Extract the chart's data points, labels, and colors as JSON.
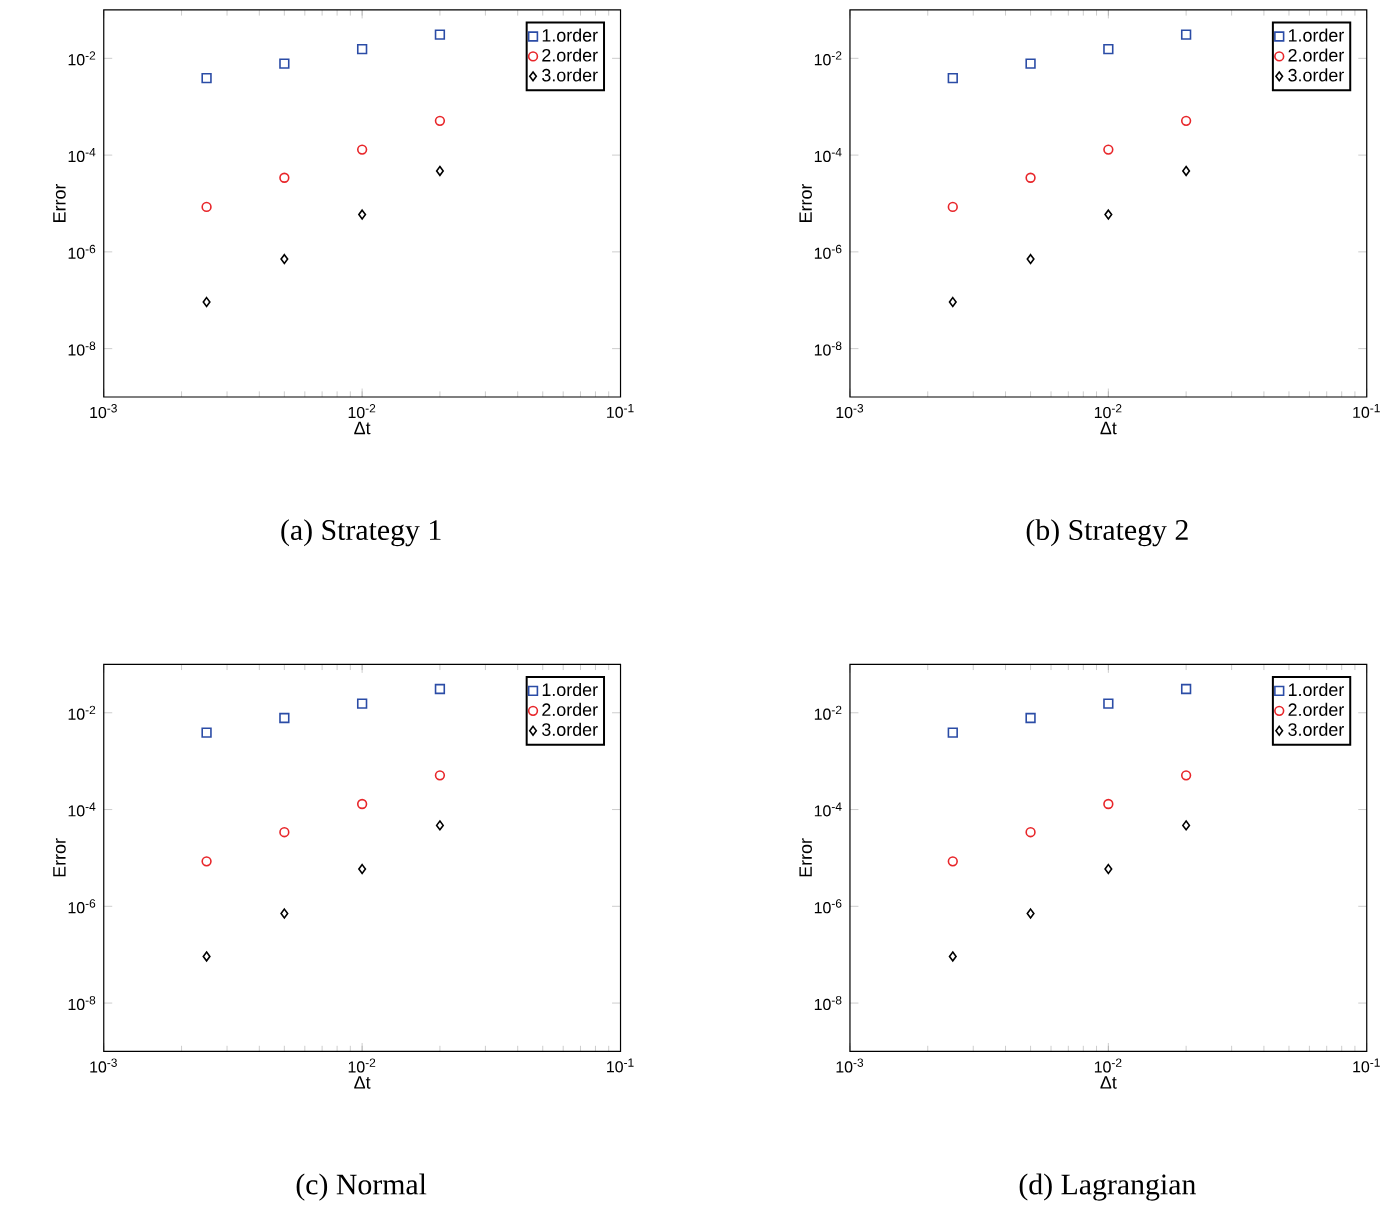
{
  "chart_data": [
    {
      "type": "scatter",
      "title": "(a) Strategy 1",
      "xlabel": "Δt",
      "ylabel": "Error",
      "log": "xy",
      "legend": "top right",
      "x": [
        0.0025,
        0.005,
        0.01,
        0.02
      ],
      "xlim": [
        0.001,
        0.1
      ],
      "ylim": [
        1e-09,
        0.1
      ],
      "xticks": [
        {
          "value": 0.001,
          "label": "10$^{-3}$"
        },
        {
          "value": 0.01,
          "label": "10$^{-2}$"
        },
        {
          "value": 0.1,
          "label": "10$^{-1}$"
        }
      ],
      "yticks": [
        {
          "value": 1e-08,
          "label": "10$^{-8}$"
        },
        {
          "value": 1e-06,
          "label": "10$^{-6}$"
        },
        {
          "value": 0.0001,
          "label": "10$^{-4}$"
        },
        {
          "value": 0.01,
          "label": "10$^{-2}$"
        }
      ],
      "series": [
        {
          "name": "1.order",
          "color": "#2b4ca6",
          "marker": "square",
          "values": [
            0.0039,
            0.0078,
            0.0155,
            0.031
          ]
        },
        {
          "name": "2.order",
          "color": "#e8262a",
          "marker": "circle",
          "values": [
            8.5e-06,
            3.4e-05,
            0.00013,
            0.00051
          ]
        },
        {
          "name": "3.order",
          "color": "#000000",
          "marker": "diamond",
          "values": [
            9.2e-08,
            7.1e-07,
            5.9e-06,
            4.7e-05
          ]
        }
      ]
    },
    {
      "type": "scatter",
      "title": "(b) Strategy 2",
      "xlabel": "Δt",
      "ylabel": "Error",
      "log": "xy",
      "legend": "top right",
      "x": [
        0.0025,
        0.005,
        0.01,
        0.02
      ],
      "xlim": [
        0.001,
        0.1
      ],
      "ylim": [
        1e-09,
        0.1
      ],
      "xticks": [
        {
          "value": 0.001,
          "label": "10$^{-3}$"
        },
        {
          "value": 0.01,
          "label": "10$^{-2}$"
        },
        {
          "value": 0.1,
          "label": "10$^{-1}$"
        }
      ],
      "yticks": [
        {
          "value": 1e-08,
          "label": "10$^{-8}$"
        },
        {
          "value": 1e-06,
          "label": "10$^{-6}$"
        },
        {
          "value": 0.0001,
          "label": "10$^{-4}$"
        },
        {
          "value": 0.01,
          "label": "10$^{-2}$"
        }
      ],
      "series": [
        {
          "name": "1.order",
          "color": "#2b4ca6",
          "marker": "square",
          "values": [
            0.0039,
            0.0078,
            0.0155,
            0.031
          ]
        },
        {
          "name": "2.order",
          "color": "#e8262a",
          "marker": "circle",
          "values": [
            8.5e-06,
            3.4e-05,
            0.00013,
            0.00051
          ]
        },
        {
          "name": "3.order",
          "color": "#000000",
          "marker": "diamond",
          "values": [
            9.2e-08,
            7.1e-07,
            5.9e-06,
            4.7e-05
          ]
        }
      ]
    },
    {
      "type": "scatter",
      "title": "(c) Normal",
      "xlabel": "Δt",
      "ylabel": "Error",
      "log": "xy",
      "legend": "top right",
      "x": [
        0.0025,
        0.005,
        0.01,
        0.02
      ],
      "xlim": [
        0.001,
        0.1
      ],
      "ylim": [
        1e-09,
        0.1
      ],
      "xticks": [
        {
          "value": 0.001,
          "label": "10$^{-3}$"
        },
        {
          "value": 0.01,
          "label": "10$^{-2}$"
        },
        {
          "value": 0.1,
          "label": "10$^{-1}$"
        }
      ],
      "yticks": [
        {
          "value": 1e-08,
          "label": "10$^{-8}$"
        },
        {
          "value": 1e-06,
          "label": "10$^{-6}$"
        },
        {
          "value": 0.0001,
          "label": "10$^{-4}$"
        },
        {
          "value": 0.01,
          "label": "10$^{-2}$"
        }
      ],
      "series": [
        {
          "name": "1.order",
          "color": "#2b4ca6",
          "marker": "square",
          "values": [
            0.0039,
            0.0078,
            0.0155,
            0.031
          ]
        },
        {
          "name": "2.order",
          "color": "#e8262a",
          "marker": "circle",
          "values": [
            8.5e-06,
            3.4e-05,
            0.00013,
            0.00051
          ]
        },
        {
          "name": "3.order",
          "color": "#000000",
          "marker": "diamond",
          "values": [
            9.2e-08,
            7.1e-07,
            5.9e-06,
            4.7e-05
          ]
        }
      ]
    },
    {
      "type": "scatter",
      "title": "(d) Lagrangian",
      "xlabel": "Δt",
      "ylabel": "Error",
      "log": "xy",
      "legend": "top right",
      "x": [
        0.0025,
        0.005,
        0.01,
        0.02
      ],
      "xlim": [
        0.001,
        0.1
      ],
      "ylim": [
        1e-09,
        0.1
      ],
      "xticks": [
        {
          "value": 0.001,
          "label": "10$^{-3}$"
        },
        {
          "value": 0.01,
          "label": "10$^{-2}$"
        },
        {
          "value": 0.1,
          "label": "10$^{-1}$"
        }
      ],
      "yticks": [
        {
          "value": 1e-08,
          "label": "10$^{-8}$"
        },
        {
          "value": 1e-06,
          "label": "10$^{-6}$"
        },
        {
          "value": 0.0001,
          "label": "10$^{-4}$"
        },
        {
          "value": 0.01,
          "label": "10$^{-2}$"
        }
      ],
      "series": [
        {
          "name": "1.order",
          "color": "#2b4ca6",
          "marker": "square",
          "values": [
            0.0039,
            0.0078,
            0.0155,
            0.031
          ]
        },
        {
          "name": "2.order",
          "color": "#e8262a",
          "marker": "circle",
          "values": [
            8.5e-06,
            3.4e-05,
            0.00013,
            0.00051
          ]
        },
        {
          "name": "3.order",
          "color": "#000000",
          "marker": "diamond",
          "values": [
            9.2e-08,
            7.1e-07,
            5.9e-06,
            4.7e-05
          ]
        }
      ]
    }
  ]
}
